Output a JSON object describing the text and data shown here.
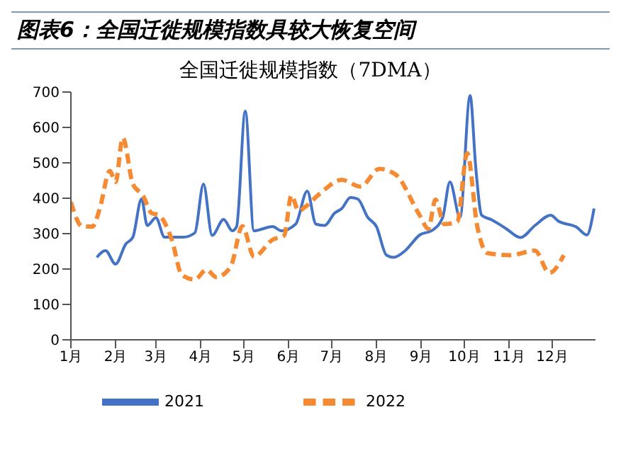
{
  "chart_data": {
    "type": "line",
    "title": "图表6：全国迁徙规模指数具较大恢复空间",
    "subtitle": "全国迁徙规模指数（7DMA）",
    "xlim": [
      "--01-01",
      "--12-31"
    ],
    "xticks": [
      {
        "value": "--01-01",
        "label": "1月"
      },
      {
        "value": "--02-01",
        "label": "2月"
      },
      {
        "value": "--03-01",
        "label": "3月"
      },
      {
        "value": "--04-01",
        "label": "4月"
      },
      {
        "value": "--05-01",
        "label": "5月"
      },
      {
        "value": "--06-01",
        "label": "6月"
      },
      {
        "value": "--07-01",
        "label": "7月"
      },
      {
        "value": "--08-01",
        "label": "8月"
      },
      {
        "value": "--09-01",
        "label": "9月"
      },
      {
        "value": "--10-01",
        "label": "10月"
      },
      {
        "value": "--11-01",
        "label": "11月"
      },
      {
        "value": "--12-01",
        "label": "12月"
      }
    ],
    "ylim": [
      0,
      700
    ],
    "yticks": [
      0,
      100,
      200,
      300,
      400,
      500,
      600,
      700
    ],
    "grid": false,
    "legend": "bottom",
    "marker": "none",
    "series": [
      {
        "name": "2021",
        "color": "#4472c4",
        "line_style": "solid",
        "x": [
          "--01-19",
          "--01-25",
          "--02-01",
          "--02-08",
          "--02-13",
          "--02-19",
          "--02-23",
          "--03-01",
          "--03-07",
          "--03-20",
          "--03-28",
          "--04-03",
          "--04-09",
          "--04-17",
          "--04-23",
          "--04-26",
          "--05-02",
          "--05-08",
          "--05-21",
          "--05-27",
          "--06-06",
          "--06-14",
          "--06-20",
          "--06-26",
          "--07-03",
          "--07-08",
          "--07-14",
          "--07-19",
          "--07-26",
          "--08-01",
          "--08-08",
          "--08-13",
          "--08-21",
          "--08-31",
          "--09-09",
          "--09-16",
          "--09-21",
          "--09-28",
          "--10-05",
          "--10-09",
          "--10-13",
          "--10-20",
          "--10-30",
          "--11-09",
          "--11-19",
          "--11-30",
          "--12-05",
          "--12-18",
          "--12-25",
          "--12-30"
        ],
        "values": [
          233,
          252,
          214,
          270,
          290,
          398,
          323,
          345,
          290,
          290,
          302,
          440,
          295,
          340,
          308,
          320,
          646,
          308,
          320,
          308,
          327,
          420,
          327,
          323,
          358,
          371,
          402,
          398,
          346,
          320,
          239,
          233,
          252,
          296,
          310,
          346,
          446,
          346,
          690,
          483,
          352,
          339,
          314,
          289,
          323,
          352,
          336,
          318,
          296,
          371
        ]
      },
      {
        "name": "2022",
        "color": "#f58a33",
        "line_style": "dashed",
        "x": [
          "--01-01",
          "--01-09",
          "--01-16",
          "--01-21",
          "--01-28",
          "--02-01",
          "--02-06",
          "--02-13",
          "--02-20",
          "--02-26",
          "--03-03",
          "--03-12",
          "--03-19",
          "--03-28",
          "--04-05",
          "--04-12",
          "--04-22",
          "--04-30",
          "--05-08",
          "--05-21",
          "--05-29",
          "--06-03",
          "--06-08",
          "--06-13",
          "--06-23",
          "--07-08",
          "--07-21",
          "--08-03",
          "--08-14",
          "--08-31",
          "--09-06",
          "--09-11",
          "--09-17",
          "--09-26",
          "--10-03",
          "--10-10",
          "--10-17",
          "--11-02",
          "--11-19",
          "--11-29",
          "--12-09"
        ],
        "values": [
          389,
          320,
          320,
          370,
          477,
          446,
          571,
          440,
          408,
          358,
          352,
          283,
          183,
          170,
          198,
          177,
          208,
          321,
          235,
          283,
          295,
          408,
          364,
          377,
          414,
          452,
          433,
          483,
          468,
          352,
          314,
          396,
          327,
          333,
          527,
          320,
          245,
          239,
          252,
          189,
          239
        ]
      }
    ]
  }
}
